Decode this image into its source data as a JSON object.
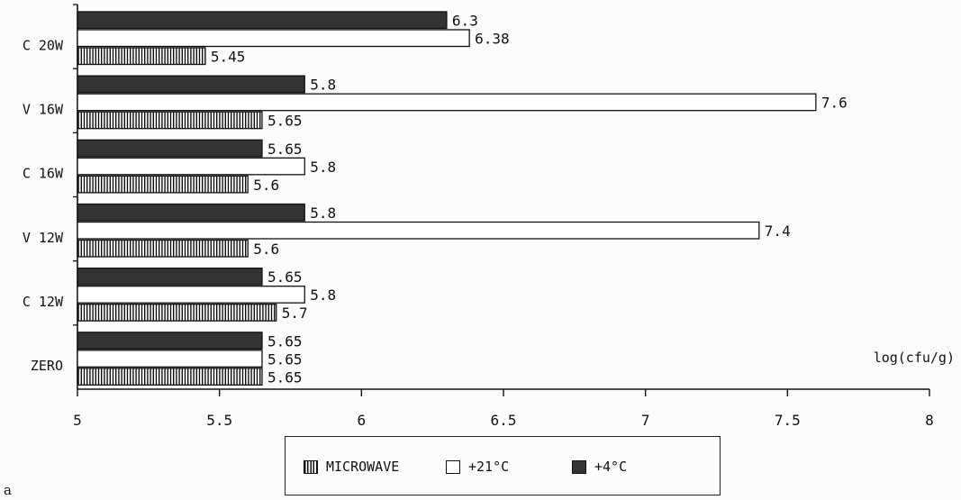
{
  "chart_data": {
    "type": "bar",
    "orientation": "horizontal",
    "categories": [
      "C 20W",
      "V 16W",
      "C 16W",
      "V 12W",
      "C 12W",
      "ZERO"
    ],
    "series": [
      {
        "name": "+4°C",
        "values": [
          6.3,
          5.8,
          5.65,
          5.8,
          5.65,
          5.65
        ],
        "color": "#333333",
        "pattern": "solid-dark"
      },
      {
        "name": "+21°C",
        "values": [
          6.38,
          7.6,
          5.8,
          7.4,
          5.8,
          5.65
        ],
        "color": "#ffffff",
        "pattern": "open"
      },
      {
        "name": "MICROWAVE",
        "values": [
          5.45,
          5.65,
          5.6,
          5.6,
          5.7,
          5.65
        ],
        "color": "#111111",
        "pattern": "vertical-stripes"
      }
    ],
    "data_labels": [
      [
        "6.3",
        "6.38",
        "5.45"
      ],
      [
        "5.8",
        "7.6",
        "5.65"
      ],
      [
        "5.65",
        "5.8",
        "5.6"
      ],
      [
        "5.8",
        "7.4",
        "5.6"
      ],
      [
        "5.65",
        "5.8",
        "5.7"
      ],
      [
        "5.65",
        "5.65",
        "5.65"
      ]
    ],
    "xlabel": "log(cfu/g)",
    "xlim": [
      5,
      8
    ],
    "xticks": [
      "5",
      "5.5",
      "6",
      "6.5",
      "7",
      "7.5",
      "8"
    ],
    "grid": false,
    "legend_placement": "bottom-center"
  },
  "legend": {
    "items": [
      {
        "label": "MICROWAVE",
        "swatch": "vertical-stripes"
      },
      {
        "label": "+21°C",
        "swatch": "open"
      },
      {
        "label": "+4°C",
        "swatch": "solid-dark"
      }
    ]
  },
  "panel_letter": "a"
}
